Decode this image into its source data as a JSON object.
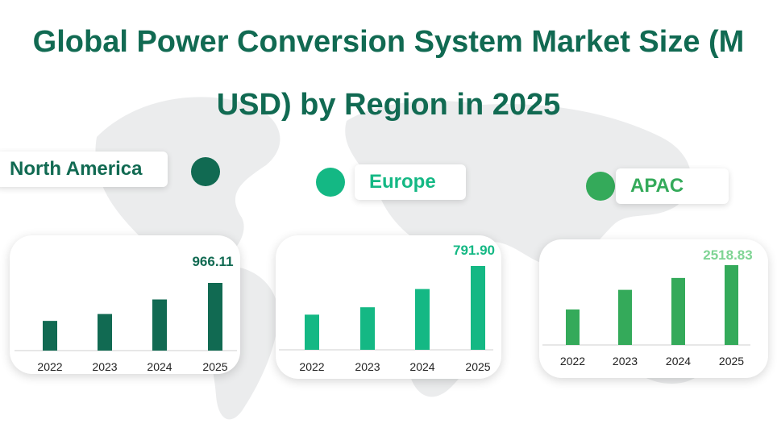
{
  "title_line1": "Global Power Conversion System Market Size (M",
  "title_line2": "USD) by Region in 2025",
  "colors": {
    "title": "#116a52",
    "north_america": "#116a52",
    "europe": "#14b884",
    "apac": "#34aa5a",
    "apac_value": "#7fd494"
  },
  "chart_data": [
    {
      "type": "bar",
      "region": "North America",
      "categories": [
        "2022",
        "2023",
        "2024",
        "2025"
      ],
      "values": [
        424,
        522,
        730,
        966.11
      ],
      "value_label": "966.11"
    },
    {
      "type": "bar",
      "region": "Europe",
      "categories": [
        "2022",
        "2023",
        "2024",
        "2025"
      ],
      "values": [
        332,
        402,
        574,
        791.9
      ],
      "value_label": "791.90"
    },
    {
      "type": "bar",
      "region": "APAC",
      "categories": [
        "2022",
        "2023",
        "2024",
        "2025"
      ],
      "values": [
        1120,
        1740,
        2115,
        2518.83
      ],
      "value_label": "2518.83"
    }
  ]
}
